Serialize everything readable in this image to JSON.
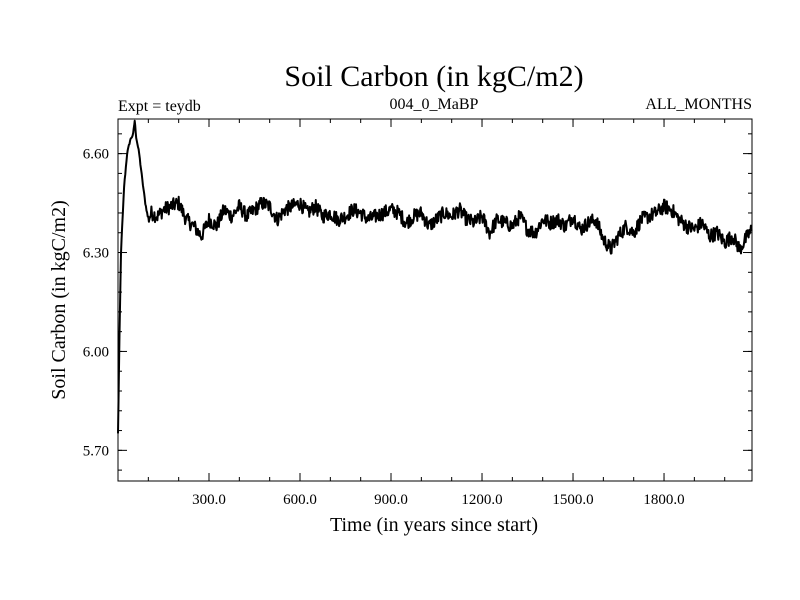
{
  "chart_data": {
    "type": "line",
    "title": "Soil Carbon (in kgC/m2)",
    "subtitle_left": "Expt = teydb",
    "subtitle_center": "004_0_MaBP",
    "subtitle_right": "ALL_MONTHS",
    "xlabel": "Time (in years since start)",
    "ylabel": "Soil Carbon (in kgC/m2)",
    "xlim": [
      0,
      2090
    ],
    "ylim": [
      5.607,
      6.705
    ],
    "x_ticks": [
      300,
      600,
      900,
      1200,
      1500,
      1800
    ],
    "x_tick_labels": [
      "300.0",
      "600.0",
      "900.0",
      "1200.0",
      "1500.0",
      "1800.0"
    ],
    "y_ticks": [
      5.7,
      6.0,
      6.3,
      6.6
    ],
    "y_tick_labels": [
      "5.70",
      "6.00",
      "6.30",
      "6.60"
    ],
    "grid": false,
    "series": [
      {
        "color": "#000000",
        "x": [
          0,
          5,
          10,
          20,
          30,
          40,
          50,
          55,
          60,
          70,
          80,
          90,
          100,
          110,
          130,
          150,
          175,
          200,
          225,
          250,
          275,
          300,
          325,
          350,
          375,
          400,
          425,
          450,
          475,
          500,
          525,
          550,
          575,
          600,
          625,
          650,
          675,
          700,
          725,
          750,
          775,
          800,
          825,
          850,
          875,
          900,
          925,
          950,
          975,
          1000,
          1025,
          1050,
          1075,
          1100,
          1125,
          1150,
          1175,
          1200,
          1225,
          1250,
          1275,
          1300,
          1325,
          1350,
          1375,
          1400,
          1425,
          1450,
          1475,
          1500,
          1525,
          1550,
          1575,
          1600,
          1625,
          1650,
          1675,
          1700,
          1725,
          1750,
          1775,
          1800,
          1825,
          1850,
          1875,
          1900,
          1925,
          1950,
          1975,
          2000,
          2025,
          2050,
          2075,
          2090
        ],
        "y": [
          5.75,
          6.05,
          6.3,
          6.5,
          6.6,
          6.64,
          6.66,
          6.7,
          6.65,
          6.6,
          6.52,
          6.45,
          6.4,
          6.42,
          6.41,
          6.43,
          6.44,
          6.45,
          6.4,
          6.38,
          6.35,
          6.4,
          6.38,
          6.43,
          6.41,
          6.44,
          6.41,
          6.43,
          6.45,
          6.44,
          6.4,
          6.43,
          6.44,
          6.45,
          6.42,
          6.44,
          6.41,
          6.42,
          6.4,
          6.41,
          6.43,
          6.42,
          6.4,
          6.41,
          6.42,
          6.43,
          6.42,
          6.39,
          6.41,
          6.42,
          6.38,
          6.4,
          6.42,
          6.41,
          6.43,
          6.4,
          6.39,
          6.41,
          6.36,
          6.4,
          6.39,
          6.38,
          6.41,
          6.37,
          6.36,
          6.4,
          6.39,
          6.4,
          6.38,
          6.41,
          6.37,
          6.39,
          6.4,
          6.34,
          6.31,
          6.35,
          6.38,
          6.36,
          6.4,
          6.41,
          6.42,
          6.44,
          6.43,
          6.4,
          6.38,
          6.37,
          6.39,
          6.35,
          6.36,
          6.33,
          6.35,
          6.31,
          6.35,
          6.37
        ]
      }
    ]
  }
}
